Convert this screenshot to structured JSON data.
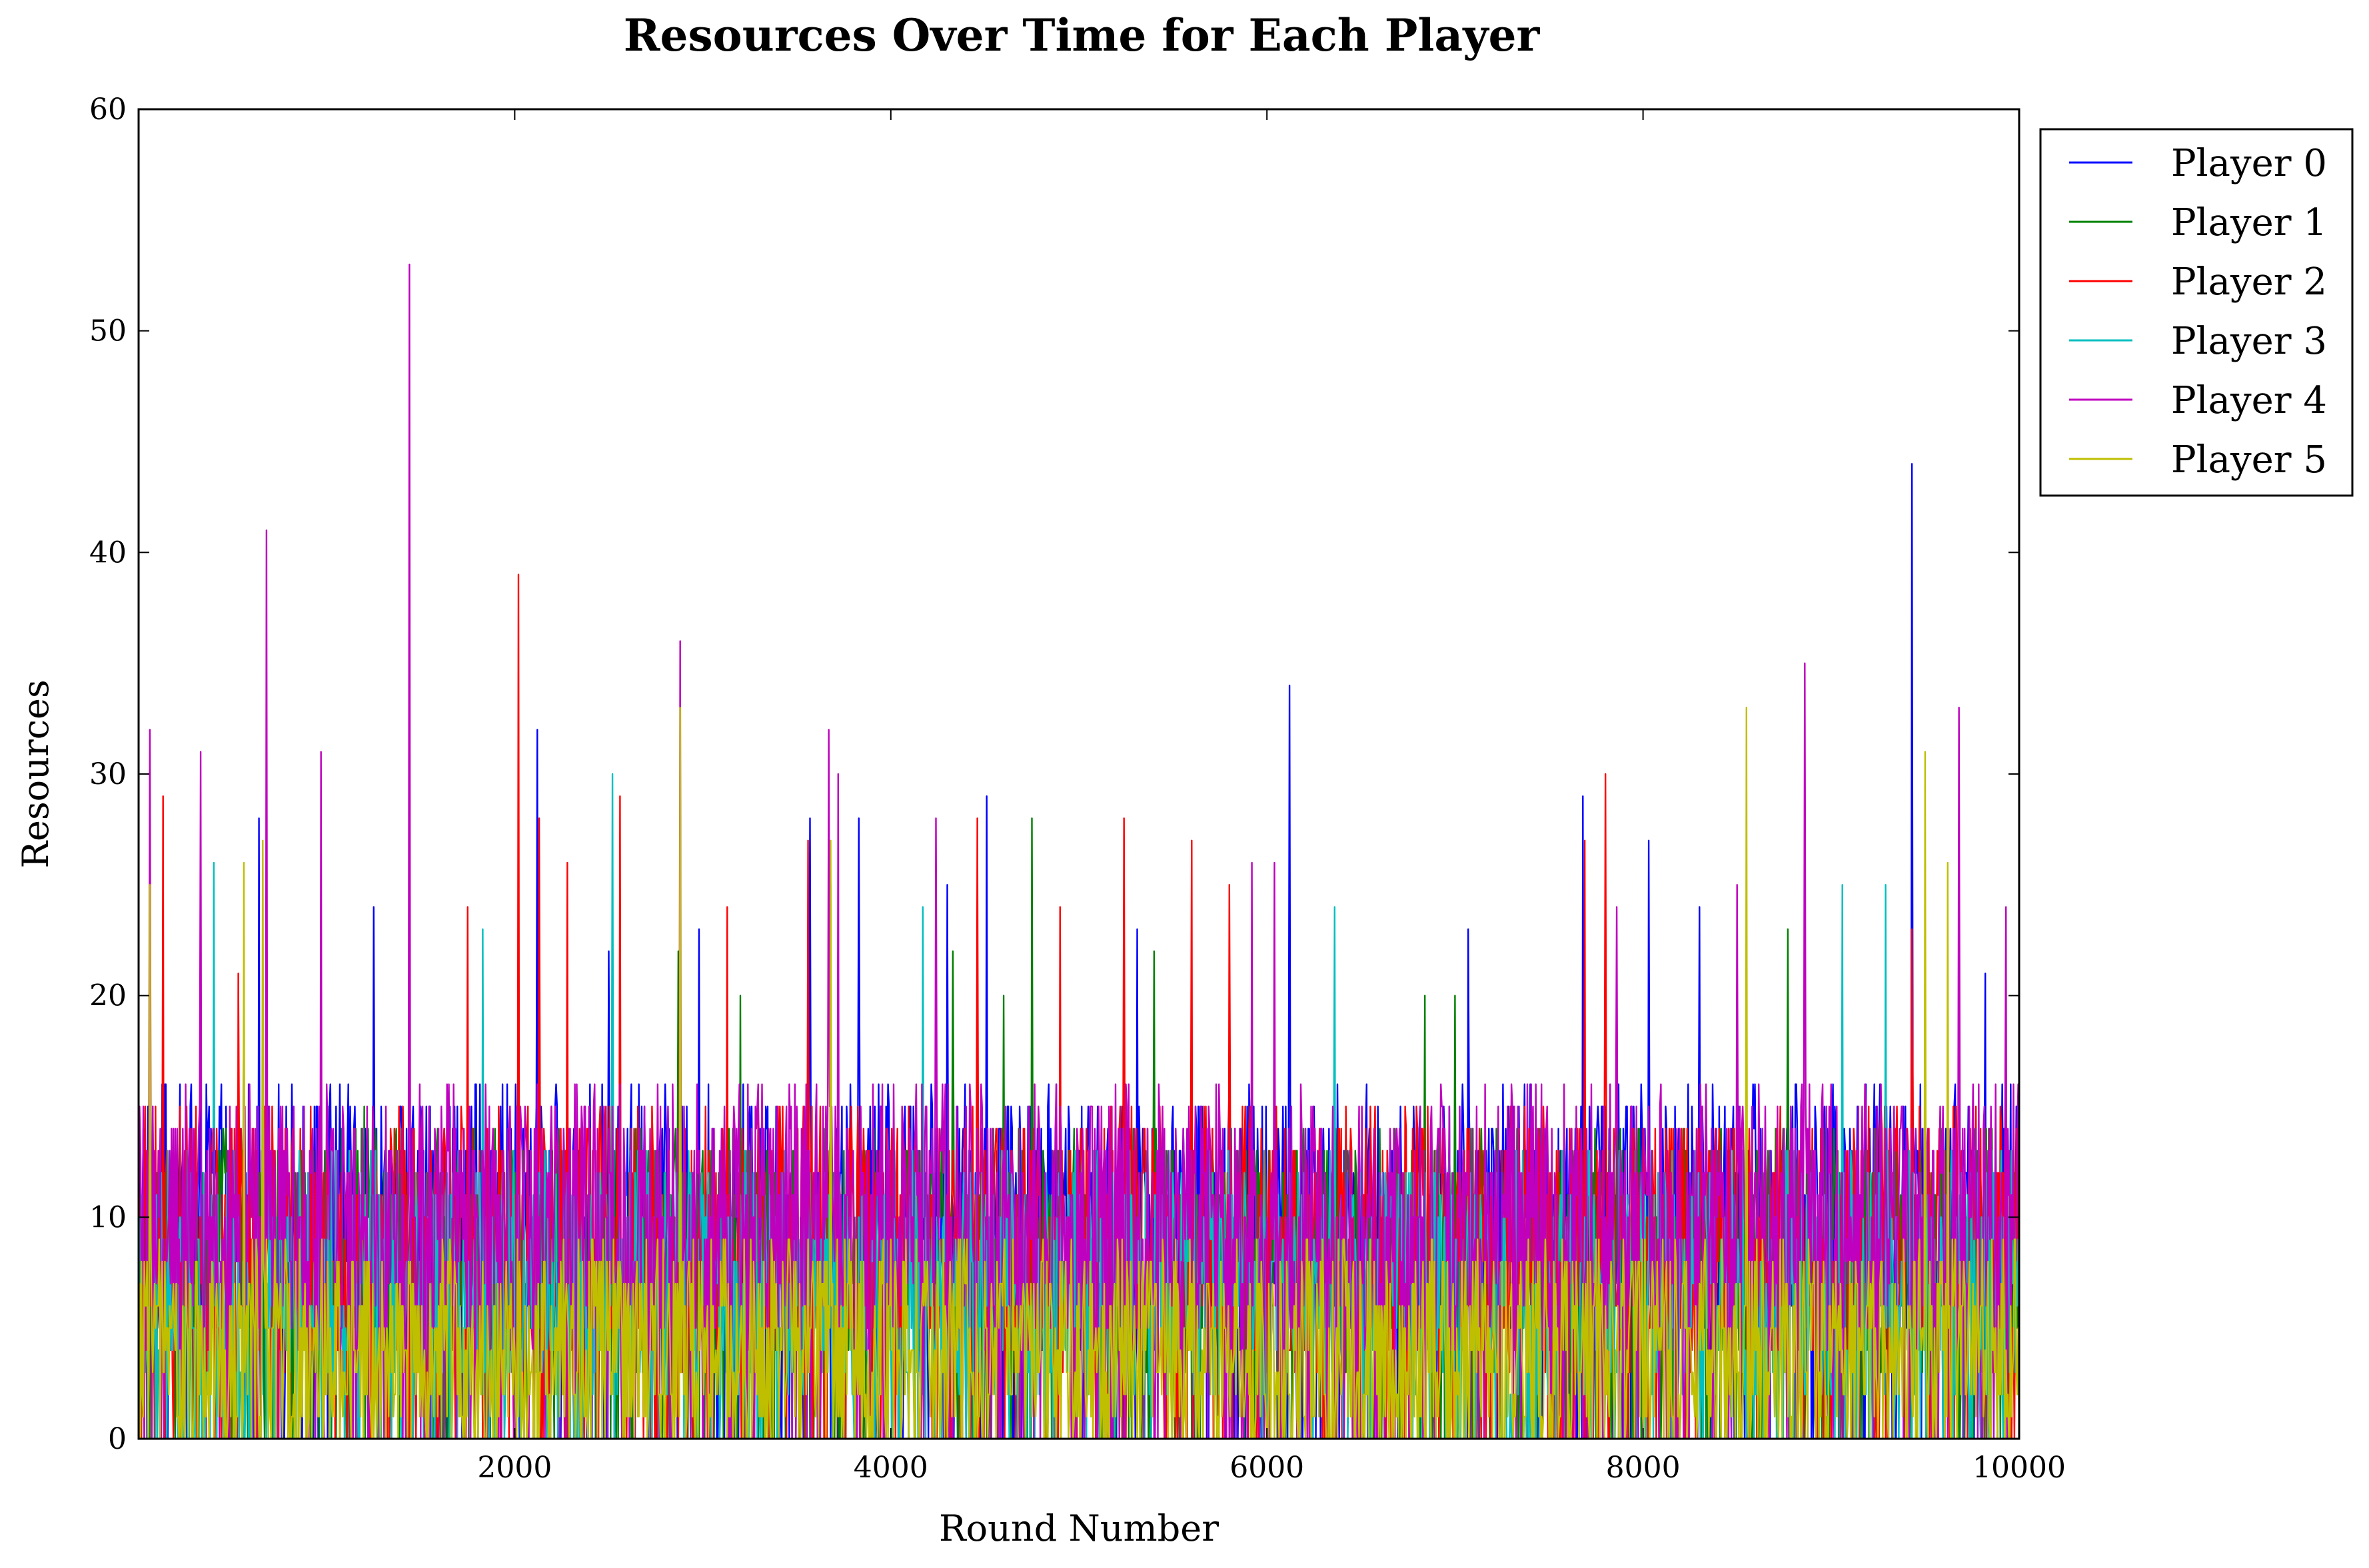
{
  "chart_data": {
    "type": "line",
    "title": "Resources Over Time for Each Player",
    "xlabel": "Round Number",
    "ylabel": "Resources",
    "xlim": [
      0,
      10000
    ],
    "ylim": [
      0,
      60
    ],
    "xticks": [
      2000,
      4000,
      6000,
      8000,
      10000
    ],
    "yticks": [
      0,
      10,
      20,
      30,
      40,
      50,
      60
    ],
    "grid": false,
    "legend_position": "top-right",
    "series": [
      {
        "name": "Player 0",
        "color": "#0000ff",
        "peaks": [
          [
            10,
            13
          ],
          [
            560,
            19
          ],
          [
            640,
            28
          ],
          [
            1150,
            15
          ],
          [
            1250,
            24
          ],
          [
            2120,
            32
          ],
          [
            2500,
            22
          ],
          [
            2980,
            23
          ],
          [
            3570,
            28
          ],
          [
            3830,
            28
          ],
          [
            4300,
            25
          ],
          [
            4510,
            29
          ],
          [
            5310,
            23
          ],
          [
            6120,
            34
          ],
          [
            7070,
            23
          ],
          [
            7680,
            29
          ],
          [
            8030,
            27
          ],
          [
            8300,
            24
          ],
          [
            9430,
            44
          ],
          [
            9820,
            21
          ]
        ],
        "baseline_range": [
          4,
          16
        ]
      },
      {
        "name": "Player 1",
        "color": "#008000",
        "peaks": [
          [
            1200,
            15
          ],
          [
            2870,
            22
          ],
          [
            3200,
            20
          ],
          [
            4330,
            22
          ],
          [
            4600,
            20
          ],
          [
            4750,
            28
          ],
          [
            5400,
            22
          ],
          [
            6840,
            20
          ],
          [
            7000,
            20
          ],
          [
            8770,
            23
          ]
        ],
        "baseline_range": [
          3,
          14
        ]
      },
      {
        "name": "Player 2",
        "color": "#ff0000",
        "peaks": [
          [
            130,
            29
          ],
          [
            530,
            21
          ],
          [
            1750,
            24
          ],
          [
            2020,
            39
          ],
          [
            2130,
            28
          ],
          [
            2280,
            26
          ],
          [
            2560,
            29
          ],
          [
            3130,
            24
          ],
          [
            3560,
            27
          ],
          [
            4460,
            28
          ],
          [
            4900,
            24
          ],
          [
            5240,
            28
          ],
          [
            5600,
            27
          ],
          [
            5800,
            25
          ],
          [
            7690,
            27
          ],
          [
            7800,
            30
          ],
          [
            9430,
            23
          ]
        ],
        "baseline_range": [
          3,
          15
        ]
      },
      {
        "name": "Player 3",
        "color": "#00bfbf",
        "peaks": [
          [
            400,
            26
          ],
          [
            1830,
            23
          ],
          [
            2520,
            30
          ],
          [
            3680,
            25
          ],
          [
            4170,
            24
          ],
          [
            6360,
            24
          ],
          [
            9060,
            25
          ],
          [
            9290,
            25
          ]
        ],
        "baseline_range": [
          2,
          13
        ]
      },
      {
        "name": "Player 4",
        "color": "#bf00bf",
        "peaks": [
          [
            60,
            32
          ],
          [
            330,
            31
          ],
          [
            680,
            41
          ],
          [
            970,
            31
          ],
          [
            1440,
            53
          ],
          [
            2880,
            36
          ],
          [
            3670,
            32
          ],
          [
            3720,
            30
          ],
          [
            4240,
            28
          ],
          [
            5920,
            26
          ],
          [
            6040,
            26
          ],
          [
            7860,
            24
          ],
          [
            8500,
            25
          ],
          [
            8860,
            35
          ],
          [
            9680,
            33
          ],
          [
            9930,
            24
          ]
        ],
        "baseline_range": [
          4,
          16
        ]
      },
      {
        "name": "Player 5",
        "color": "#bfbf00",
        "peaks": [
          [
            60,
            25
          ],
          [
            560,
            26
          ],
          [
            660,
            27
          ],
          [
            2880,
            33
          ],
          [
            3680,
            27
          ],
          [
            8550,
            33
          ],
          [
            9500,
            31
          ],
          [
            9620,
            26
          ]
        ],
        "baseline_range": [
          0,
          9
        ]
      }
    ]
  }
}
